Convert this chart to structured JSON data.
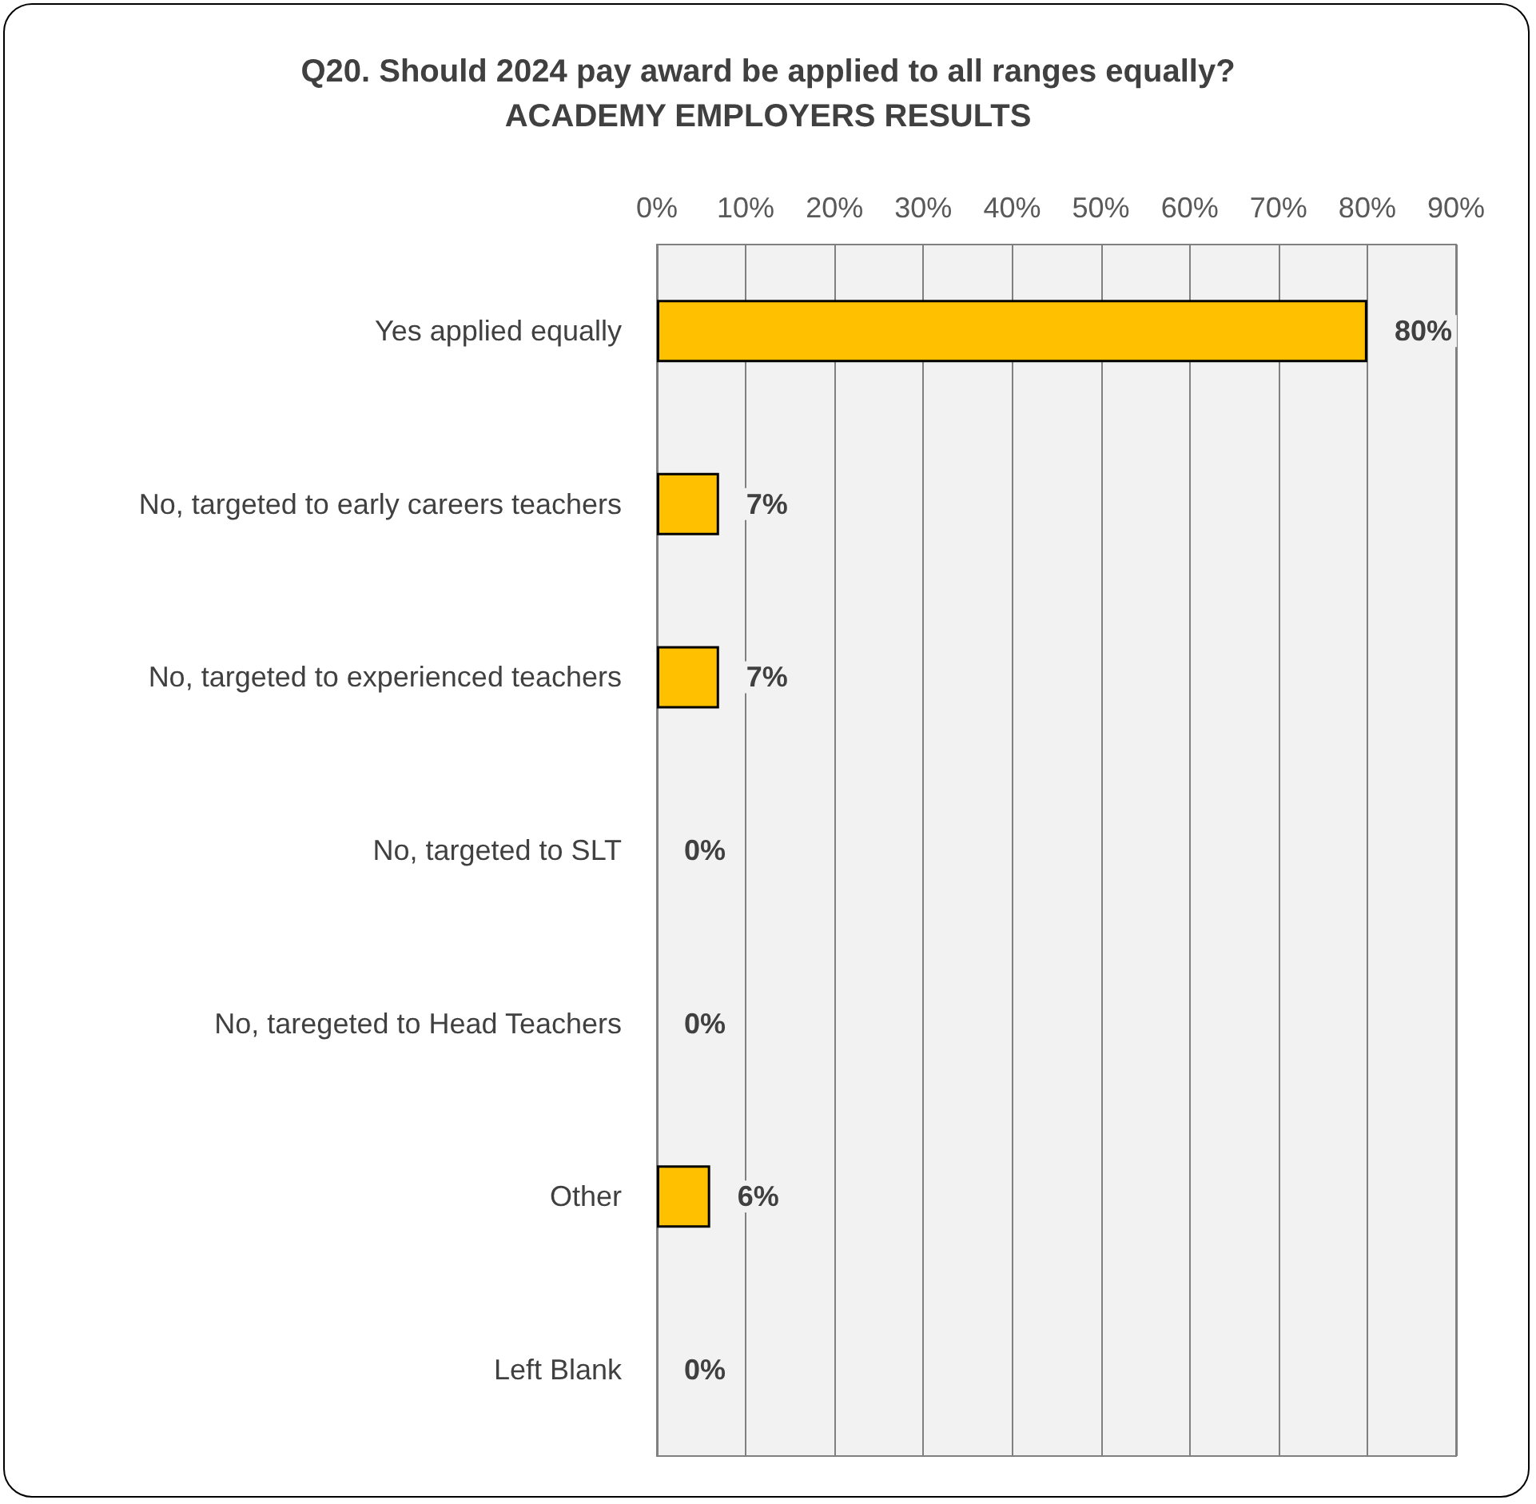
{
  "chart_data": {
    "type": "bar",
    "orientation": "horizontal",
    "title": "Q20. Should 2024 pay award be applied to all ranges equally?",
    "subtitle": "ACADEMY EMPLOYERS RESULTS",
    "categories": [
      "Yes applied equally",
      "No, targeted to early careers teachers",
      "No, targeted to experienced teachers",
      "No, targeted to SLT",
      "No, taregeted to Head Teachers",
      "Other",
      "Left Blank"
    ],
    "values": [
      80,
      7,
      7,
      0,
      0,
      6,
      0
    ],
    "value_labels": [
      "80%",
      "7%",
      "7%",
      "0%",
      "0%",
      "6%",
      "0%"
    ],
    "color": "#ffc000",
    "xlim": [
      0,
      90
    ],
    "xticks": [
      {
        "value": 0,
        "label": "0%"
      },
      {
        "value": 10,
        "label": "10%"
      },
      {
        "value": 20,
        "label": "20%"
      },
      {
        "value": 30,
        "label": "30%"
      },
      {
        "value": 40,
        "label": "40%"
      },
      {
        "value": 50,
        "label": "50%"
      },
      {
        "value": 60,
        "label": "60%"
      },
      {
        "value": 70,
        "label": "70%"
      },
      {
        "value": 80,
        "label": "80%"
      },
      {
        "value": 90,
        "label": "90%"
      }
    ],
    "grid": "x"
  }
}
